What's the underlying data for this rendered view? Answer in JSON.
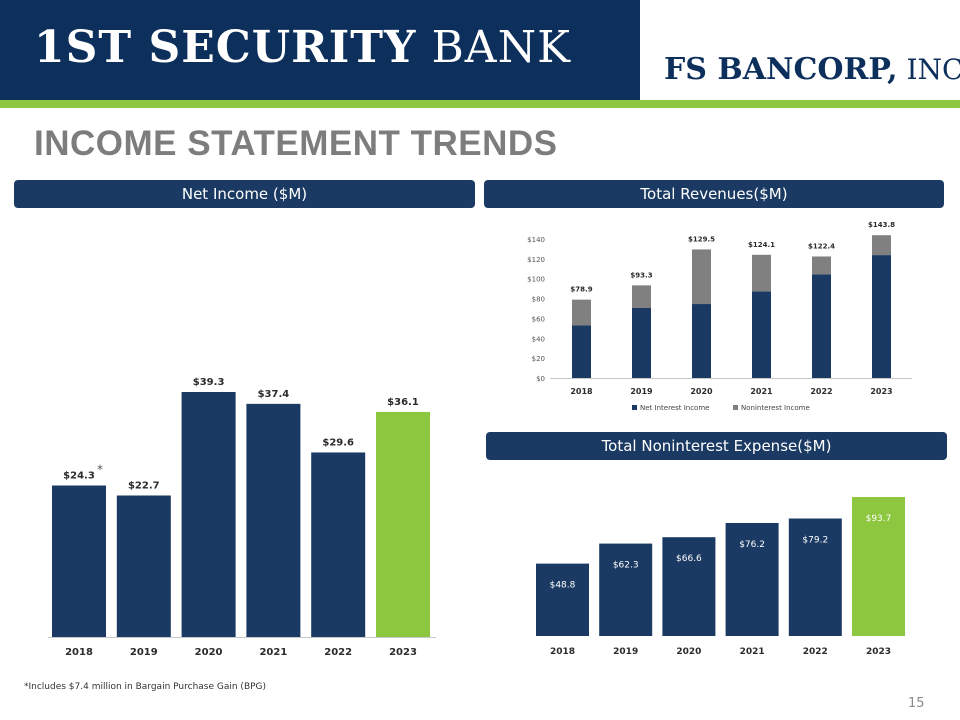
{
  "header": {
    "bank_logo_main": "1ST SECURITY",
    "bank_logo_light": " BANK",
    "bancorp_logo_main": "FS BANCORP,",
    "bancorp_logo_light": " INC."
  },
  "page": {
    "title": "INCOME STATEMENT TRENDS",
    "footnote": "*Includes $7.4 million in Bargain Purchase Gain (BPG)",
    "page_number": "15"
  },
  "colors": {
    "navy": "#1b3a63",
    "green": "#8dc63f",
    "gray": "#808080",
    "header_navy": "#0d2f5c"
  },
  "chart_data": [
    {
      "id": "net_income",
      "type": "bar",
      "title": "Net Income ($M)",
      "categories": [
        "2018",
        "2019",
        "2020",
        "2021",
        "2022",
        "2023"
      ],
      "values": [
        24.3,
        22.7,
        39.3,
        37.4,
        29.6,
        36.1
      ],
      "value_labels": [
        "$24.3",
        "$22.7",
        "$39.3",
        "$37.4",
        "$29.6",
        "$36.1"
      ],
      "annotation": "*",
      "annotation_category": "2018",
      "highlight_category": "2023",
      "grid": false
    },
    {
      "id": "total_revenues",
      "type": "bar",
      "stacked": true,
      "title": "Total Revenues($M)",
      "categories": [
        "2018",
        "2019",
        "2020",
        "2021",
        "2022",
        "2023"
      ],
      "series": [
        {
          "name": "Net Interest Income",
          "values": [
            52.9,
            70.5,
            74.5,
            87.3,
            104.5,
            123.8
          ],
          "color": "#1b3a63"
        },
        {
          "name": "Noninterest Income",
          "values": [
            26.0,
            22.8,
            55.0,
            36.8,
            17.9,
            20.0
          ],
          "color": "#808080"
        }
      ],
      "total_labels": [
        "$78.9",
        "$93.3",
        "$129.5",
        "$124.1",
        "$122.4",
        "$143.8"
      ],
      "ylim": [
        0,
        140
      ],
      "yticks": [
        0,
        20,
        40,
        60,
        80,
        100,
        120,
        140
      ],
      "ytick_labels": [
        "$0",
        "$20",
        "$40",
        "$60",
        "$80",
        "$100",
        "$120",
        "$140"
      ],
      "legend_position": "bottom",
      "grid": false
    },
    {
      "id": "noninterest_expense",
      "type": "bar",
      "title": "Total Noninterest Expense($M)",
      "categories": [
        "2018",
        "2019",
        "2020",
        "2021",
        "2022",
        "2023"
      ],
      "values": [
        48.8,
        62.3,
        66.6,
        76.2,
        79.2,
        93.7
      ],
      "value_labels": [
        "$48.8",
        "$62.3",
        "$66.6",
        "$76.2",
        "$79.2",
        "$93.7"
      ],
      "highlight_category": "2023",
      "grid": false
    }
  ]
}
